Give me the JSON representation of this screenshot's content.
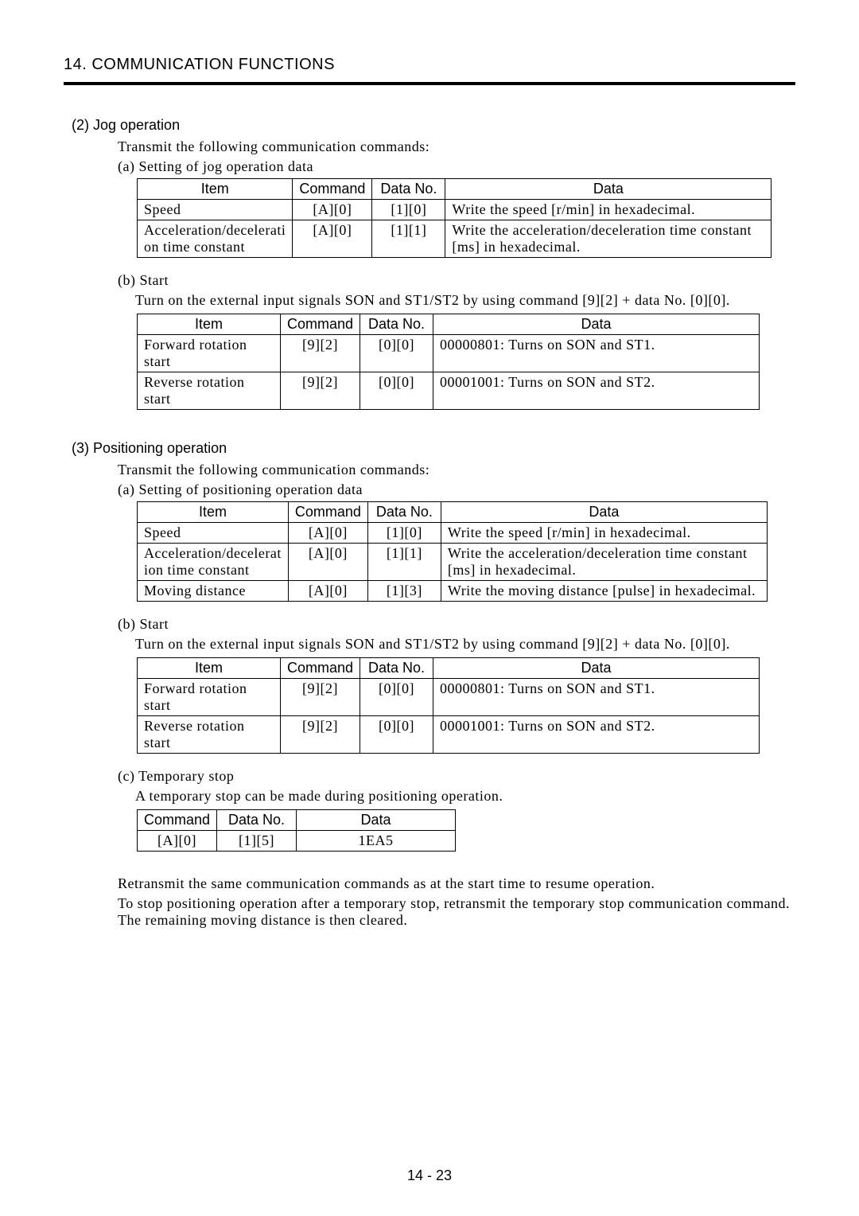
{
  "page": {
    "title": "14. COMMUNICATION FUNCTIONS",
    "pagenum": "14 -  23"
  },
  "sec2": {
    "heading": "(2) Jog operation",
    "intro": "Transmit the following communication commands:",
    "a_label": "(a) Setting of jog operation data",
    "table_a": {
      "headers": [
        "Item",
        "Command",
        "Data No.",
        "Data"
      ],
      "rows": [
        [
          "Speed",
          "[A][0]",
          "[1][0]",
          "Write the speed [r/min] in hexadecimal."
        ],
        [
          "Acceleration/decelerati​on time constant",
          "[A][0]",
          "[1][1]",
          "Write the acceleration/deceleration time constant [ms] in hexadecimal."
        ]
      ]
    },
    "b_label": "(b) Start",
    "b_text": "Turn on the external input signals SON and ST1/ST2 by using command [9][2] + data No. [0][0].",
    "table_b": {
      "headers": [
        "Item",
        "Command",
        "Data No.",
        "Data"
      ],
      "rows": [
        [
          "Forward rotation start",
          "[9][2]",
          "[0][0]",
          "00000801: Turns on SON and ST1."
        ],
        [
          "Reverse rotation start",
          "[9][2]",
          "[0][0]",
          "00001001: Turns on SON and ST2."
        ]
      ]
    }
  },
  "sec3": {
    "heading": "(3) Positioning operation",
    "intro": "Transmit the following communication commands:",
    "a_label": "(a) Setting of positioning operation data",
    "table_a": {
      "headers": [
        "Item",
        "Command",
        "Data No.",
        "Data"
      ],
      "rows": [
        [
          "Speed",
          "[A][0]",
          "[1][0]",
          "Write the speed [r/min] in hexadecimal."
        ],
        [
          "Acceleration/decelerat​ion time constant",
          "[A][0]",
          "[1][1]",
          "Write the acceleration/deceleration time constant [ms] in hexadecimal."
        ],
        [
          "Moving distance",
          "[A][0]",
          "[1][3]",
          "Write the moving distance [pulse] in hexadecimal."
        ]
      ]
    },
    "b_label": "(b) Start",
    "b_text": "Turn on the external input signals SON and ST1/ST2 by using command [9][2] + data No. [0][0].",
    "table_b": {
      "headers": [
        "Item",
        "Command",
        "Data No.",
        "Data"
      ],
      "rows": [
        [
          "Forward rotation start",
          "[9][2]",
          "[0][0]",
          "00000801: Turns on SON and ST1."
        ],
        [
          "Reverse rotation start",
          "[9][2]",
          "[0][0]",
          "00001001: Turns on SON and ST2."
        ]
      ]
    },
    "c_label": "(c) Temporary stop",
    "c_text": "A temporary stop can be made during positioning operation.",
    "table_c": {
      "headers": [
        "Command",
        "Data No.",
        "Data"
      ],
      "rows": [
        [
          "[A][0]",
          "[1][5]",
          "1EA5"
        ]
      ]
    },
    "trail1": "Retransmit the same communication commands as at the start time to resume operation.",
    "trail2": "To stop positioning operation after a temporary stop, retransmit the temporary stop communication command. The remaining moving distance is then cleared."
  }
}
